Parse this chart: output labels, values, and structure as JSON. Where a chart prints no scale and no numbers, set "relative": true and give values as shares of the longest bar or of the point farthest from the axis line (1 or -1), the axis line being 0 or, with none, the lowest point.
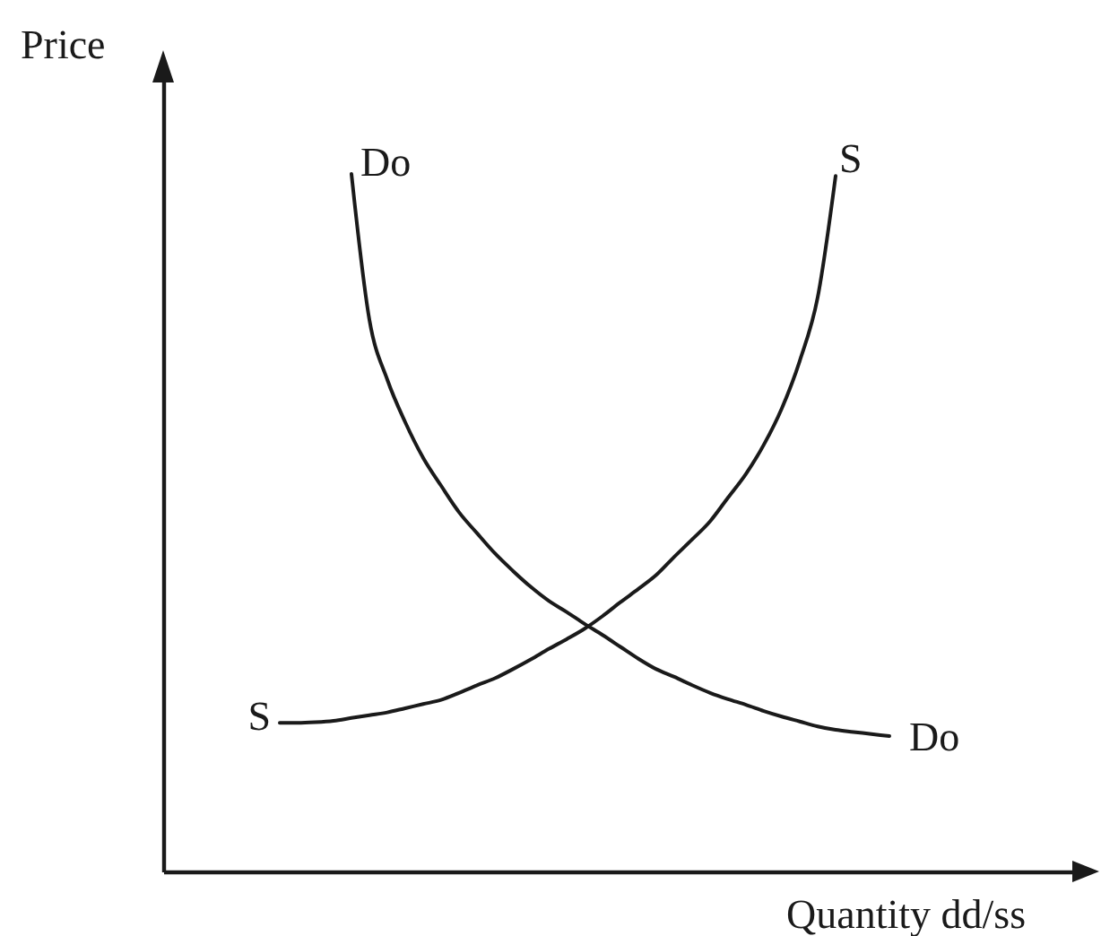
{
  "chart_data": {
    "type": "line",
    "relative": true,
    "tick_labels": false,
    "ylabel": "Price",
    "xlabel": "Quantity dd/ss",
    "categories": [
      null,
      null,
      null,
      null,
      null,
      null,
      null,
      null,
      null,
      null,
      null,
      null,
      null,
      null,
      null,
      null,
      null,
      null,
      null,
      null,
      null,
      null,
      null,
      null,
      null,
      null,
      null,
      null,
      null,
      null,
      null,
      null,
      null,
      null,
      null
    ],
    "series": [
      {
        "name": "Do",
        "color": "#1a1a1a",
        "values": [
          null,
          null,
          null,
          null,
          1.0,
          0.791,
          0.705,
          0.644,
          0.593,
          0.553,
          0.515,
          0.485,
          0.456,
          0.431,
          0.408,
          0.388,
          0.372,
          0.355,
          0.339,
          0.322,
          0.305,
          0.29,
          0.279,
          0.267,
          0.256,
          0.247,
          0.239,
          0.23,
          0.222,
          0.215,
          0.208,
          0.203,
          0.2,
          0.197,
          0.194
        ]
      },
      {
        "name": "S",
        "color": "#1a1a1a",
        "values": [
          0.213,
          0.213,
          0.214,
          0.216,
          0.22,
          0.224,
          0.228,
          0.234,
          0.24,
          0.246,
          0.256,
          0.267,
          0.277,
          0.29,
          0.304,
          0.319,
          0.333,
          0.348,
          0.366,
          0.386,
          0.405,
          0.425,
          0.451,
          0.476,
          0.502,
          0.536,
          0.57,
          0.612,
          0.664,
          0.732,
          0.823,
          0.997,
          null,
          null,
          null
        ]
      }
    ]
  }
}
